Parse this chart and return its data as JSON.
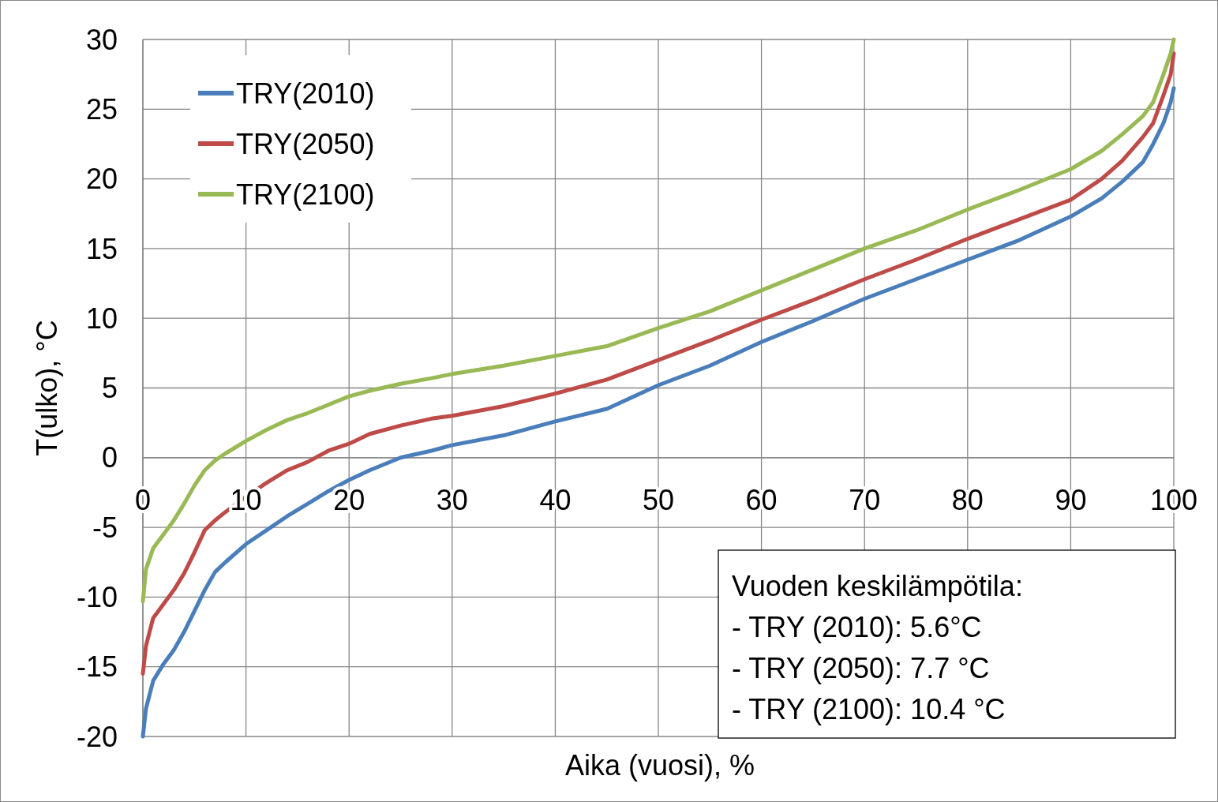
{
  "chart_data": {
    "type": "line",
    "xlabel": "Aika (vuosi), %",
    "ylabel": "T(ulko), °C",
    "xlim": [
      0,
      100
    ],
    "ylim": [
      -20,
      30
    ],
    "xticks": [
      0,
      10,
      20,
      30,
      40,
      50,
      60,
      70,
      80,
      90,
      100
    ],
    "yticks": [
      -20,
      -15,
      -10,
      -5,
      0,
      5,
      10,
      15,
      20,
      25,
      30
    ],
    "grid": true,
    "legend": "top left",
    "line_style": "solid",
    "x": [
      0,
      0.3,
      1,
      2,
      3,
      4,
      5,
      6,
      7,
      8,
      10,
      12,
      14,
      16,
      18,
      20,
      22,
      25,
      28,
      30,
      35,
      40,
      45,
      50,
      55,
      60,
      65,
      70,
      75,
      80,
      85,
      90,
      93,
      95,
      97,
      98,
      99,
      99.7,
      100
    ],
    "series": [
      {
        "name": "TRY(2010)",
        "color": "#4a7ebb",
        "values": [
          -20,
          -18,
          -16,
          -14.8,
          -13.8,
          -12.5,
          -11,
          -9.5,
          -8.2,
          -7.5,
          -6.2,
          -5.2,
          -4.2,
          -3.3,
          -2.4,
          -1.6,
          -0.9,
          0,
          0.5,
          0.9,
          1.6,
          2.6,
          3.5,
          5.2,
          6.6,
          8.3,
          9.8,
          11.4,
          12.8,
          14.2,
          15.6,
          17.3,
          18.6,
          19.8,
          21.2,
          22.5,
          24,
          25.5,
          26.5
        ]
      },
      {
        "name": "TRY(2050)",
        "color": "#be4b48",
        "values": [
          -15.5,
          -13.5,
          -11.5,
          -10.5,
          -9.5,
          -8.3,
          -6.8,
          -5.2,
          -4.5,
          -3.9,
          -2.8,
          -1.8,
          -0.9,
          -0.3,
          0.5,
          1,
          1.7,
          2.3,
          2.8,
          3,
          3.7,
          4.6,
          5.6,
          7,
          8.4,
          9.9,
          11.3,
          12.8,
          14.2,
          15.7,
          17.1,
          18.5,
          20,
          21.3,
          23,
          24,
          26,
          27.5,
          29
        ]
      },
      {
        "name": "TRY(2100)",
        "color": "#98b954",
        "values": [
          -10.3,
          -8,
          -6.5,
          -5.5,
          -4.5,
          -3.3,
          -2,
          -0.9,
          -0.2,
          0.3,
          1.2,
          2,
          2.7,
          3.2,
          3.8,
          4.4,
          4.8,
          5.3,
          5.7,
          6,
          6.6,
          7.3,
          8,
          9.3,
          10.5,
          12,
          13.5,
          15,
          16.3,
          17.8,
          19.2,
          20.7,
          22,
          23.2,
          24.5,
          25.5,
          27.5,
          29,
          30
        ]
      }
    ],
    "annotations": [
      "Vuoden keskilämpötila:",
      "- TRY (2010): 5.6°C",
      "- TRY (2050): 7.7 °C",
      "- TRY (2100): 10.4 °C"
    ]
  }
}
